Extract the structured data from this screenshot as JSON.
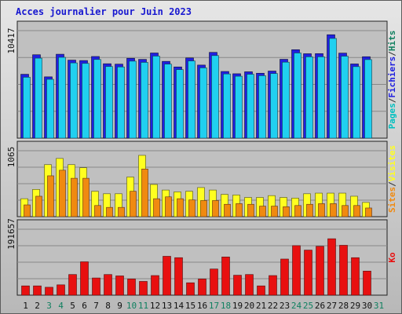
{
  "chart_data": {
    "type": "bar",
    "title": "Acces journalier pour Juin 2023",
    "days": [
      "1",
      "2",
      "3",
      "4",
      "5",
      "6",
      "7",
      "8",
      "9",
      "10",
      "11",
      "12",
      "13",
      "14",
      "15",
      "16",
      "17",
      "18",
      "19",
      "20",
      "21",
      "22",
      "23",
      "24",
      "25",
      "26",
      "27",
      "28",
      "29",
      "30",
      "31"
    ],
    "weekend_days": [
      3,
      4,
      10,
      11,
      17,
      18,
      24,
      25,
      31
    ],
    "panels": [
      {
        "id": "hits",
        "ymax_label": "10417",
        "ymax": 10417,
        "right_labels": [
          "Pages",
          "Fichiers",
          "Hits"
        ],
        "series": [
          {
            "name": "Hits",
            "values": [
              6190,
              8080,
              5940,
              8130,
              7560,
              7520,
              7910,
              7210,
              7170,
              7740,
              7630,
              8250,
              7440,
              6900,
              7770,
              7080,
              8310,
              6460,
              6240,
              6430,
              6290,
              6500,
              7640,
              8570,
              8180,
              8190,
              10020,
              8240,
              7190,
              7890,
              0
            ]
          },
          {
            "name": "Fichiers",
            "values": [
              5900,
              7750,
              5700,
              7830,
              7290,
              7240,
              7620,
              6940,
              6900,
              7460,
              7340,
              7950,
              7170,
              6640,
              7480,
              6810,
              8000,
              6220,
              6000,
              6190,
              6050,
              6260,
              7360,
              8250,
              7880,
              7880,
              9660,
              7940,
              6930,
              7610,
              0
            ]
          },
          {
            "name": "Pages",
            "values": [
              0,
              0,
              0,
              0,
              0,
              0,
              0,
              0,
              0,
              0,
              0,
              0,
              0,
              0,
              0,
              0,
              0,
              0,
              0,
              0,
              0,
              0,
              0,
              0,
              0,
              0,
              0,
              0,
              0,
              0,
              0
            ]
          }
        ]
      },
      {
        "id": "visits",
        "ymax_label": "1065",
        "ymax": 1065,
        "right_labels": [
          "Sites",
          "Visites"
        ],
        "series": [
          {
            "name": "Visites",
            "values": [
              290,
              440,
              840,
              940,
              840,
              790,
              410,
              370,
              370,
              640,
              990,
              520,
              430,
              400,
              410,
              470,
              430,
              360,
              350,
              310,
              310,
              340,
              310,
              300,
              370,
              380,
              380,
              380,
              330,
              230,
              0
            ]
          },
          {
            "name": "Sites",
            "values": [
              190,
              330,
              660,
              750,
              620,
              620,
              180,
              150,
              150,
              410,
              770,
              290,
              320,
              290,
              270,
              260,
              260,
              200,
              210,
              200,
              170,
              170,
              160,
              180,
              200,
              210,
              210,
              180,
              180,
              140,
              0
            ]
          }
        ]
      },
      {
        "id": "kb",
        "ymax_label": "191657",
        "ymax": 191657,
        "right_labels": [
          "Ko"
        ],
        "series": [
          {
            "name": "Ko",
            "values": [
              27000,
              27000,
              23000,
              30000,
              60000,
              97000,
              50000,
              60000,
              56000,
              47000,
              40000,
              57000,
              113000,
              109000,
              36000,
              47000,
              76000,
              111000,
              58000,
              60000,
              27000,
              57000,
              105000,
              144000,
              131000,
              142000,
              164000,
              145000,
              109000,
              70000,
              0
            ]
          }
        ]
      }
    ]
  },
  "colors": {
    "title": "#1818D0",
    "hits": "#2020E0",
    "fichiers": "#20D0F0",
    "pages": "#00C0C0",
    "visites": "#FFFF20",
    "sites": "#F08A10",
    "ko": "#E81010",
    "day_normal": "#101010",
    "day_weekend": "#108060",
    "panel_bg": "#C0C0C0",
    "grid": "#888888"
  }
}
